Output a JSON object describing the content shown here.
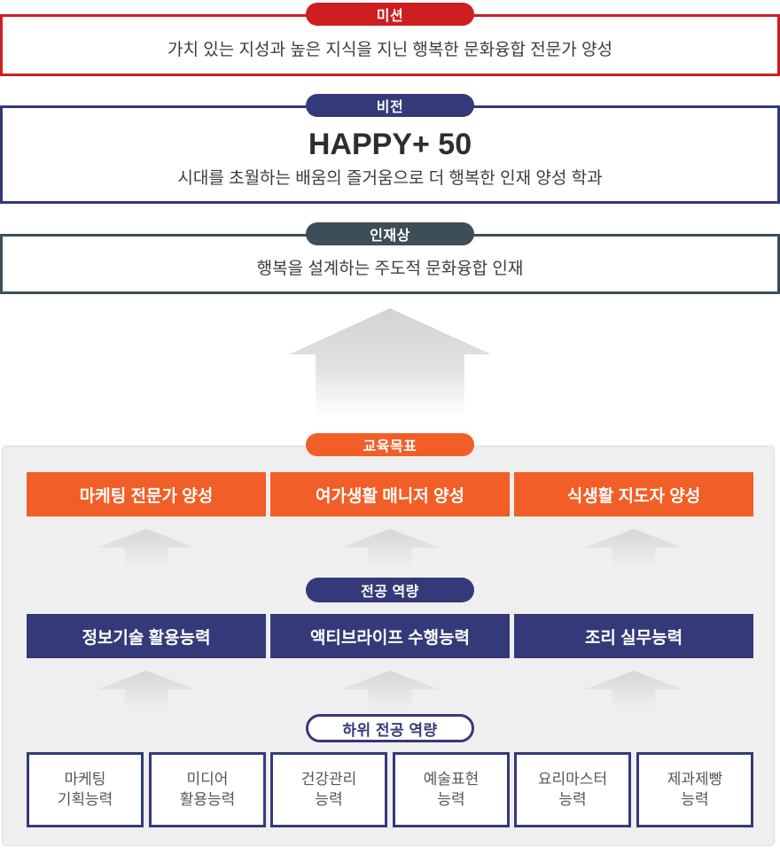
{
  "colors": {
    "mission_red": "#cd1e20",
    "vision_navy": "#343a79",
    "talent_slate": "#3e4e58",
    "goal_orange": "#f25e27",
    "panel_gray": "#efefef",
    "arrow_gray": "#d7d7d7"
  },
  "mission": {
    "badge": "미션",
    "text": "가치 있는 지성과 높은 지식을 지닌 행복한 문화융합 전문가 양성"
  },
  "vision": {
    "badge": "비전",
    "title": "HAPPY+ 50",
    "subtitle": "시대를 초월하는 배움의 즐거움으로 더 행복한 인재 양성 학과"
  },
  "talent": {
    "badge": "인재상",
    "text": "행복을 설계하는 주도적 문화융합 인재"
  },
  "education_goals": {
    "badge": "교육목표",
    "items": [
      "마케팅 전문가 양성",
      "여가생활 매니저 양성",
      "식생활 지도자 양성"
    ]
  },
  "major_competencies": {
    "badge": "전공 역량",
    "items": [
      "정보기술 활용능력",
      "액티브라이프 수행능력",
      "조리 실무능력"
    ]
  },
  "sub_competencies": {
    "badge": "하위 전공 역량",
    "items": [
      "마케팅\n기획능력",
      "미디어\n활용능력",
      "건강관리\n능력",
      "예술표현\n능력",
      "요리마스터\n능력",
      "제과제빵\n능력"
    ]
  }
}
